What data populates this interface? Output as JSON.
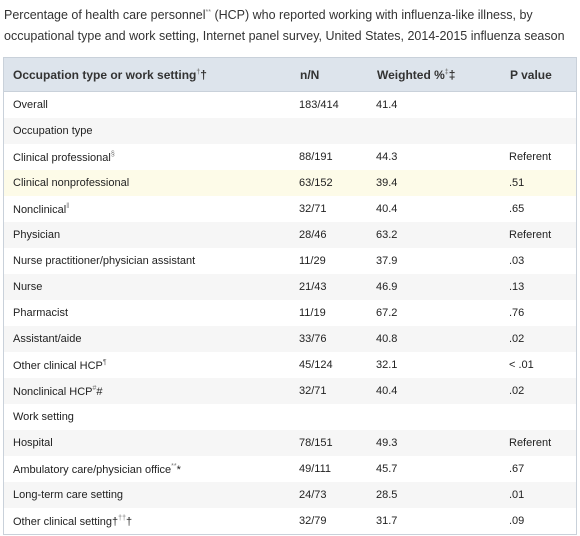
{
  "caption": {
    "text": "Percentage of health care personnel",
    "sup": "**",
    "tail": " (HCP) who reported working with influenza-like illness, by occupational type and work setting, Internet panel survey, United States, 2014-2015 influenza season"
  },
  "table": {
    "header": [
      {
        "text": "Occupation type or work setting",
        "sup": "†",
        "tail": "†"
      },
      {
        "text": "n/N"
      },
      {
        "text": "Weighted %",
        "sup": "‡",
        "tail": "‡"
      },
      {
        "text": "P value"
      }
    ],
    "rows": [
      {
        "label": "Overall",
        "cells": [
          "183/414",
          "41.4"
        ]
      },
      {
        "label": "Occupation type"
      },
      {
        "label": "Clinical professional",
        "sup": "§",
        "cells": [
          "88/191",
          "44.3",
          "Referent"
        ]
      },
      {
        "label": "Clinical nonprofessional",
        "cells": [
          "63/152",
          "39.4",
          ".51"
        ]
      },
      {
        "label": "Nonclinical",
        "sup": "‖",
        "cells": [
          "32/71",
          "40.4",
          ".65"
        ]
      },
      {
        "label": "Physician",
        "cells": [
          "28/46",
          "63.2",
          "Referent"
        ]
      },
      {
        "label": "Nurse practitioner/physician assistant",
        "cells": [
          "11/29",
          "37.9",
          ".03"
        ]
      },
      {
        "label": "Nurse",
        "cells": [
          "21/43",
          "46.9",
          ".13"
        ]
      },
      {
        "label": "Pharmacist",
        "cells": [
          "11/19",
          "67.2",
          ".76"
        ]
      },
      {
        "label": "Assistant/aide",
        "cells": [
          "33/76",
          "40.8",
          ".02"
        ]
      },
      {
        "label": "Other clinical HCP",
        "sup": "¶",
        "cells": [
          "45/124",
          "32.1",
          "< .01"
        ]
      },
      {
        "label": "Nonclinical HCP",
        "sup": "#",
        "tail": "#",
        "cells": [
          "32/71",
          "40.4",
          ".02"
        ]
      },
      {
        "label": "Work setting"
      },
      {
        "label": "Hospital",
        "cells": [
          "78/151",
          "49.3",
          "Referent"
        ]
      },
      {
        "label": "Ambulatory care/physician office",
        "sup": "**",
        "tail": "*",
        "cells": [
          "49/111",
          "45.7",
          ".67"
        ]
      },
      {
        "label": "Long-term care setting",
        "cells": [
          "24/73",
          "28.5",
          ".01"
        ]
      },
      {
        "label": "Other clinical setting†",
        "sup": "††",
        "tail": "†",
        "cells": [
          "32/79",
          "31.7",
          ".09"
        ]
      }
    ]
  }
}
